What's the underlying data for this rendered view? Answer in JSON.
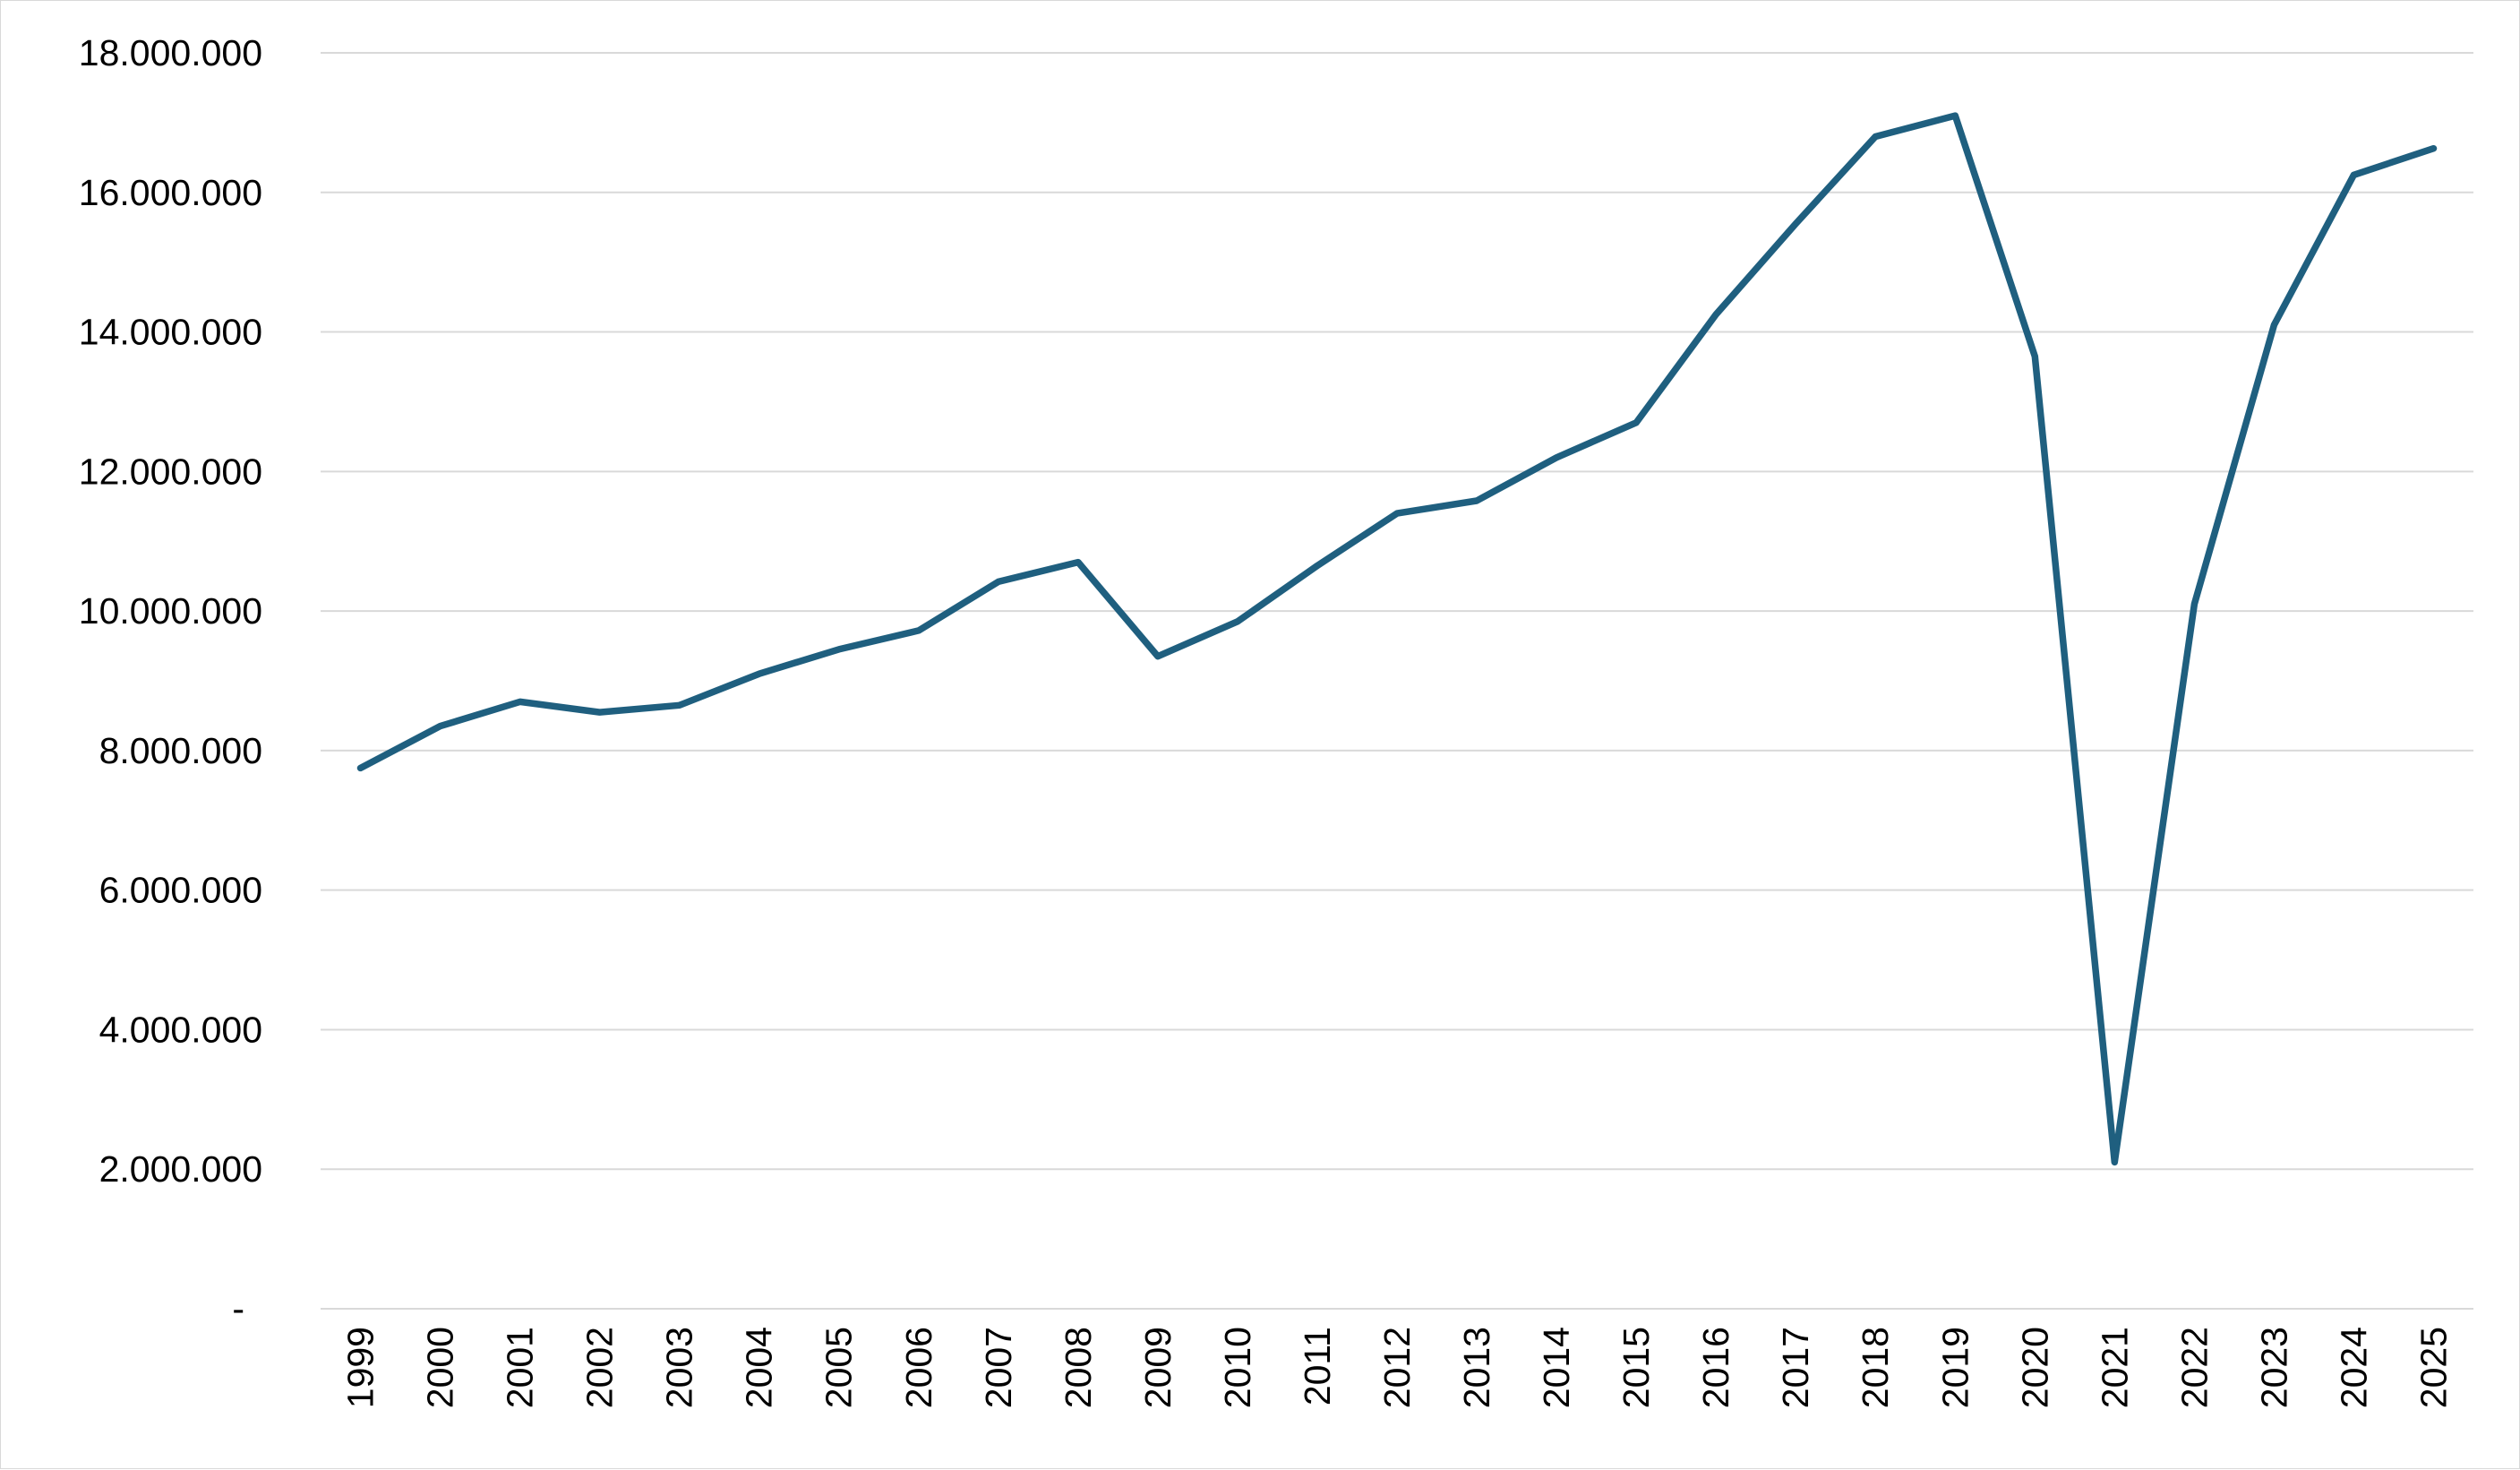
{
  "chart_data": {
    "type": "line",
    "title": "",
    "xlabel": "",
    "ylabel": "",
    "categories": [
      "1999",
      "2000",
      "2001",
      "2002",
      "2003",
      "2004",
      "2005",
      "2006",
      "2007",
      "2008",
      "2009",
      "2010",
      "2011",
      "2012",
      "2013",
      "2014",
      "2015",
      "2016",
      "2017",
      "2018",
      "2019",
      "2020",
      "2021",
      "2022",
      "2023",
      "2024",
      "2025"
    ],
    "series": [
      {
        "values": [
          7750000,
          8350000,
          8700000,
          8550000,
          8650000,
          9100000,
          9450000,
          9720000,
          10420000,
          10700000,
          9350000,
          9850000,
          10650000,
          11400000,
          11580000,
          12200000,
          12700000,
          14250000,
          15550000,
          16800000,
          17100000,
          13650000,
          2100000,
          10100000,
          14100000,
          16250000,
          16630000
        ],
        "color": "#1f5f7f"
      }
    ],
    "ylim": [
      0,
      18000000
    ],
    "y_ticks": [
      0,
      2000000,
      4000000,
      6000000,
      8000000,
      10000000,
      12000000,
      14000000,
      16000000,
      18000000
    ],
    "y_tick_labels": [
      "-",
      "2.000.000",
      "4.000.000",
      "6.000.000",
      "8.000.000",
      "10.000.000",
      "12.000.000",
      "14.000.000",
      "16.000.000",
      "18.000.000"
    ],
    "x_tick_rotation": "vertical",
    "grid": true,
    "legend": "none"
  }
}
